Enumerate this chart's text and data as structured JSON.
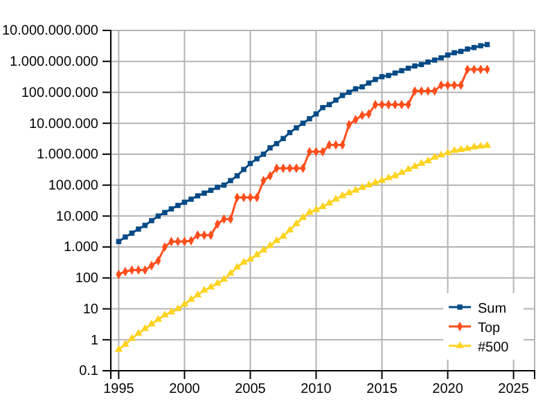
{
  "chart_data": {
    "type": "line",
    "log": true,
    "grid": true,
    "legend": "bottom right",
    "x": [
      1995,
      1995.5,
      1996,
      1996.5,
      1997,
      1997.5,
      1998,
      1998.5,
      1999,
      1999.5,
      2000,
      2000.5,
      2001,
      2001.5,
      2002,
      2002.5,
      2003,
      2003.5,
      2004,
      2004.5,
      2005,
      2005.5,
      2006,
      2006.5,
      2007,
      2007.5,
      2008,
      2008.5,
      2009,
      2009.5,
      2010,
      2010.5,
      2011,
      2011.5,
      2012,
      2012.5,
      2013,
      2013.5,
      2014,
      2014.5,
      2015,
      2015.5,
      2016,
      2016.5,
      2017,
      2017.5,
      2018,
      2018.5,
      2019,
      2019.5,
      2020,
      2020.5,
      2021,
      2021.5,
      2022,
      2022.5,
      2023
    ],
    "xlim": [
      1994.4,
      2026.6
    ],
    "xticks": [
      1995,
      2000,
      2005,
      2010,
      2015,
      2020,
      2025
    ],
    "ylim": [
      0.1,
      10000000000
    ],
    "yticks": [
      0.1,
      1,
      10,
      100,
      {
        "value": 1000,
        "label": "1.000"
      },
      {
        "value": 10000,
        "label": "10.000"
      },
      {
        "value": 100000,
        "label": "100.000"
      },
      {
        "value": 1000000,
        "label": "1.000.000"
      },
      {
        "value": 10000000,
        "label": "10.000.000"
      },
      {
        "value": 100000000,
        "label": "100.000.000"
      },
      {
        "value": 1000000000,
        "label": "1.000.000.000"
      },
      {
        "value": 10000000000,
        "label": "10.000.000.000"
      }
    ],
    "series": [
      {
        "name": "Sum",
        "color": "#004a86",
        "marker": "square",
        "values": [
          1500,
          2100,
          2800,
          3800,
          5000,
          7100,
          10000,
          13000,
          17000,
          22000,
          28000,
          35000,
          45000,
          55000,
          68000,
          85000,
          100000,
          140000,
          200000,
          320000,
          500000,
          710000,
          1000000,
          1600000,
          2200000,
          3200000,
          5000000,
          7100000,
          10000000,
          14000000,
          20000000,
          32000000,
          40000000,
          56000000,
          79000000,
          100000000,
          130000000,
          150000000,
          200000000,
          260000000,
          320000000,
          350000000,
          420000000,
          500000000,
          600000000,
          710000000,
          790000000,
          950000000,
          1100000000,
          1300000000,
          1600000000,
          1900000000,
          2100000000,
          2500000000,
          2800000000,
          3200000000,
          3500000000
        ]
      },
      {
        "name": "Top",
        "color": "#ff4e1c",
        "marker": "diamond",
        "values": [
          130,
          160,
          180,
          180,
          180,
          250,
          360,
          1000,
          1500,
          1500,
          1500,
          1600,
          2400,
          2400,
          2400,
          5500,
          8000,
          8000,
          40000,
          40000,
          40000,
          40000,
          140000,
          200000,
          350000,
          350000,
          350000,
          350000,
          350000,
          1200000,
          1200000,
          1200000,
          2000000,
          2000000,
          2000000,
          9000000,
          13000000,
          18000000,
          20000000,
          40000000,
          40000000,
          40000000,
          40000000,
          40000000,
          40000000,
          110000000,
          110000000,
          110000000,
          110000000,
          170000000,
          170000000,
          170000000,
          170000000,
          550000000,
          550000000,
          550000000,
          550000000
        ]
      },
      {
        "name": "#500",
        "color": "#ffd320",
        "marker": "triangle",
        "values": [
          0.48,
          0.71,
          1.1,
          1.6,
          2.3,
          3.2,
          4.5,
          6.3,
          7.9,
          10,
          14,
          20,
          28,
          40,
          50,
          66,
          89,
          140,
          220,
          320,
          400,
          560,
          790,
          1100,
          1600,
          2200,
          3500,
          5600,
          8900,
          13000,
          16000,
          20000,
          26000,
          35000,
          45000,
          56000,
          68000,
          83000,
          100000,
          120000,
          140000,
          170000,
          200000,
          250000,
          320000,
          400000,
          500000,
          600000,
          790000,
          930000,
          1100000,
          1300000,
          1400000,
          1500000,
          1700000,
          1800000,
          1900000
        ]
      }
    ]
  }
}
